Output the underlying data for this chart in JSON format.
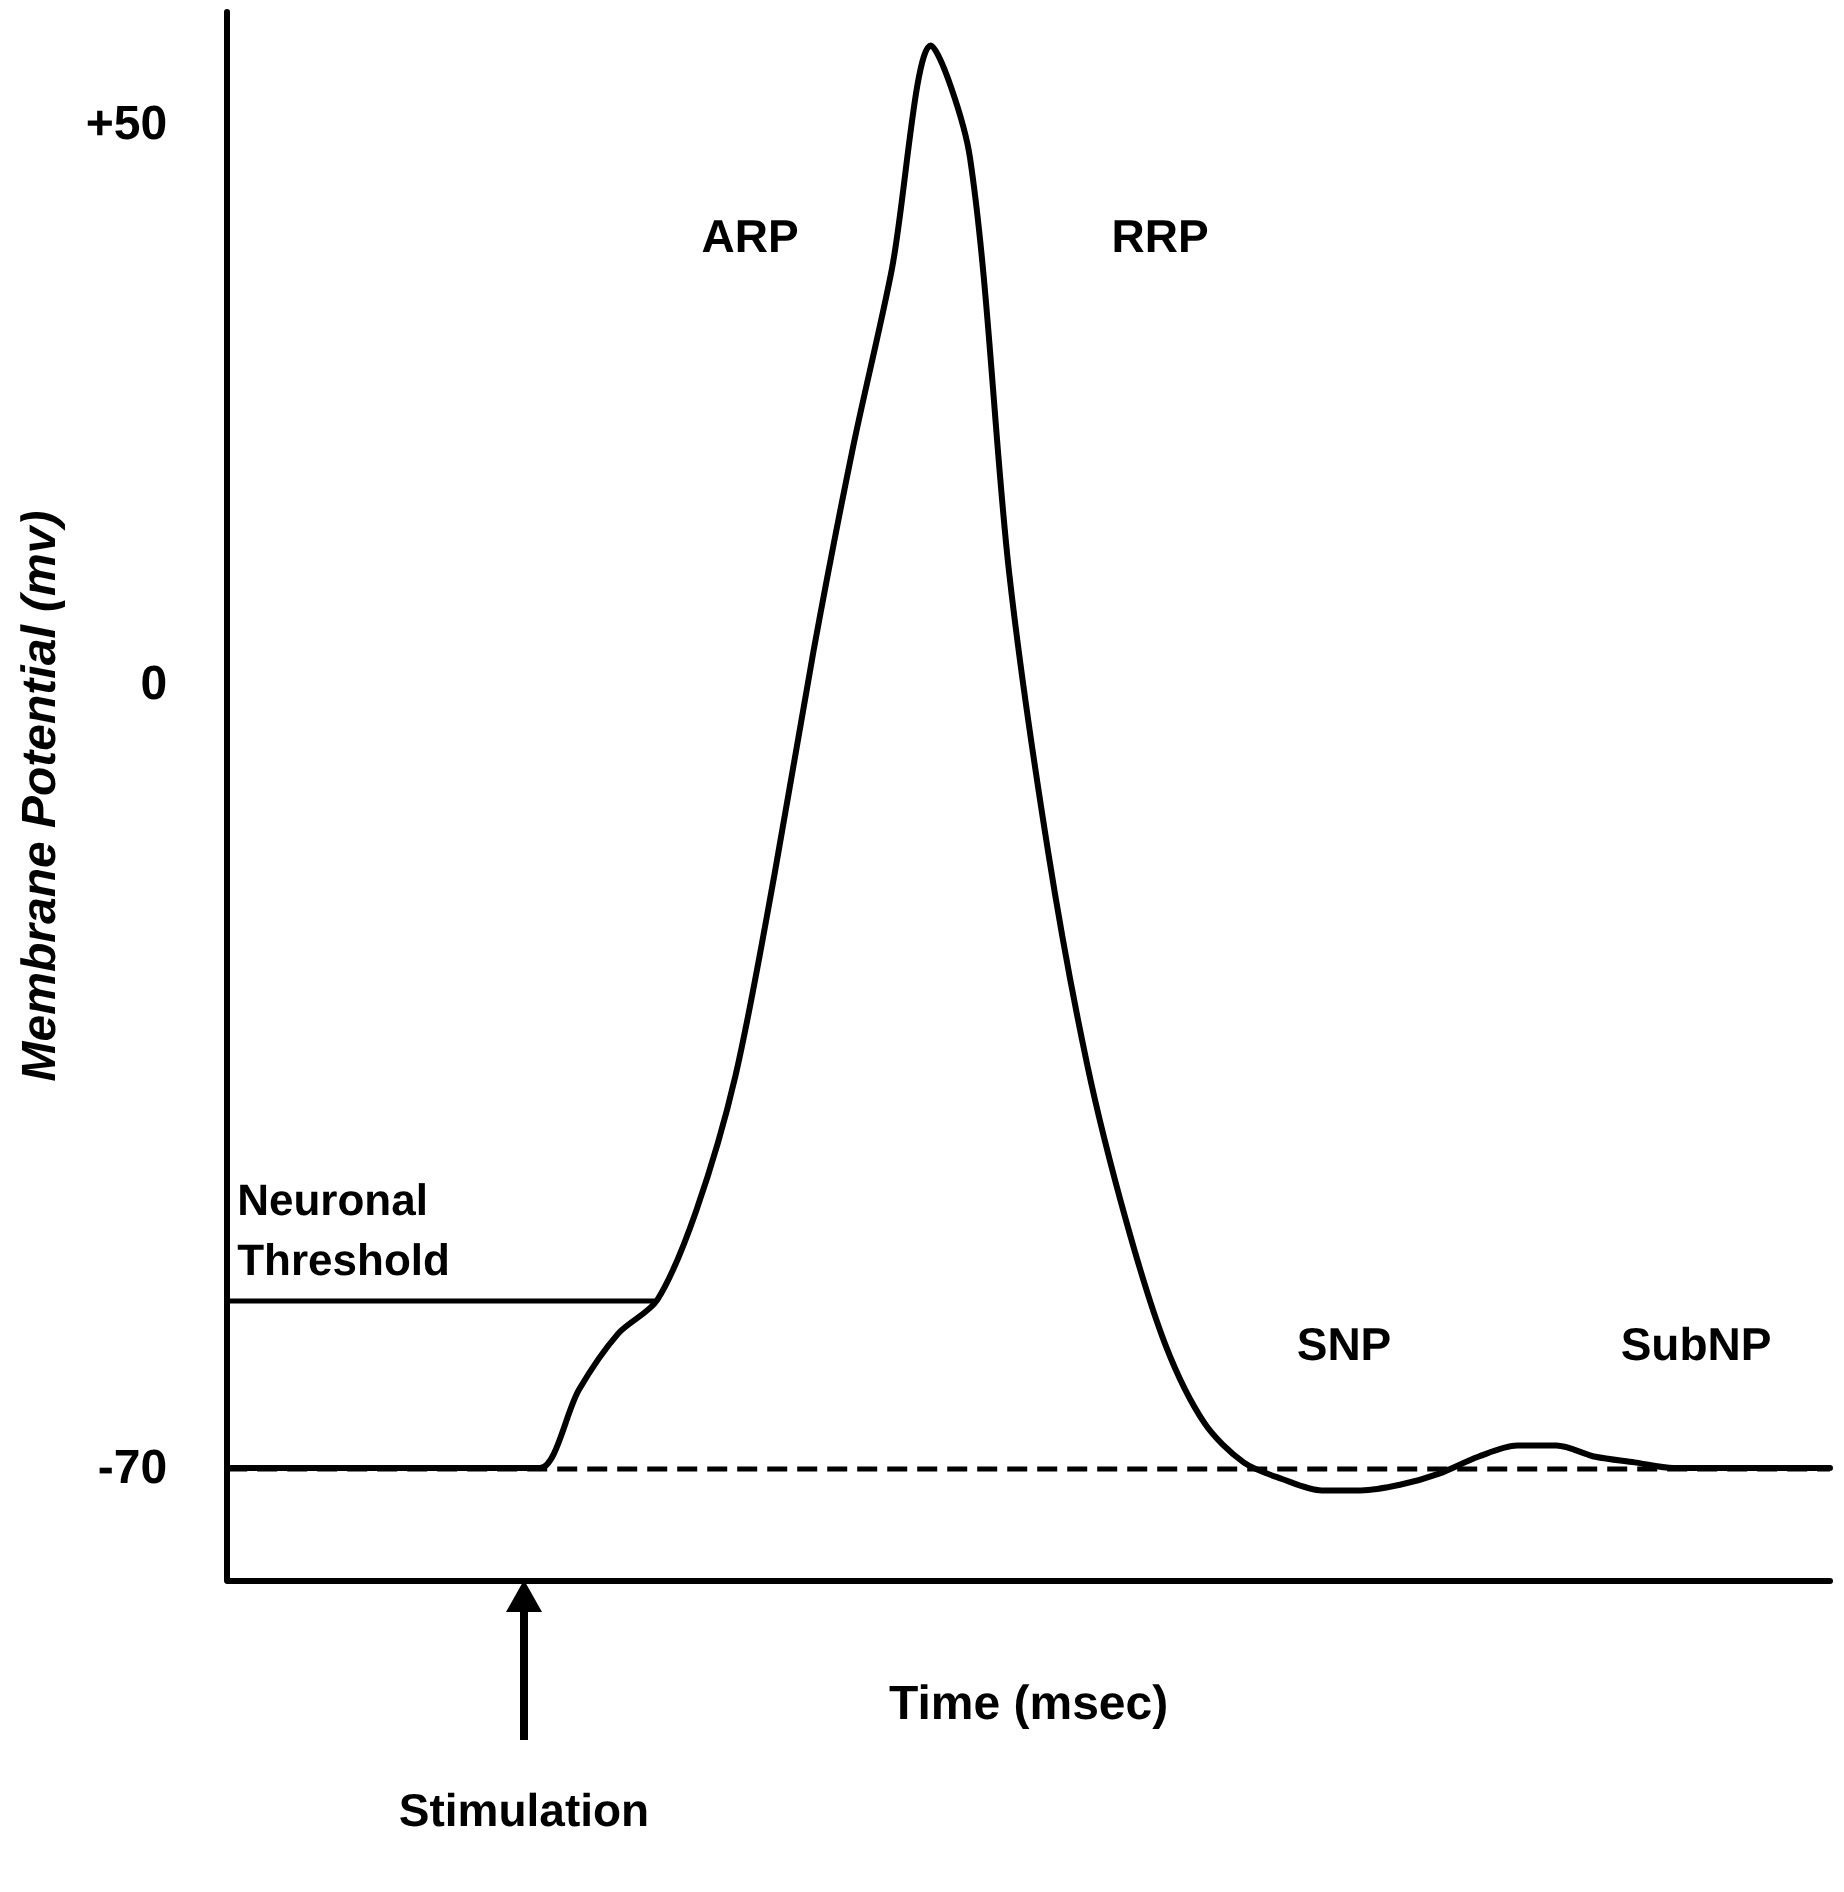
{
  "chart_data": {
    "type": "line",
    "xlabel": "Time (msec)",
    "ylabel": "Membrane Potential (mv)",
    "categories": [
      null,
      null,
      null,
      null,
      null,
      null,
      null,
      null,
      null,
      null,
      null,
      null,
      null,
      null,
      null,
      null,
      null,
      null,
      null,
      null,
      null,
      null,
      null,
      null,
      null,
      null,
      null,
      null,
      null,
      null,
      null,
      null,
      null,
      null,
      null,
      null,
      null,
      null,
      null,
      null,
      null,
      null
    ],
    "series": [
      {
        "color": "#000000",
        "values": [
          -70,
          -70,
          -70,
          -70,
          -70,
          -70,
          -70,
          -70,
          -70,
          -63,
          -58,
          -55,
          -47,
          -35,
          -17,
          3,
          21,
          37,
          57,
          47,
          10,
          -15,
          -34,
          -48,
          -59,
          -66,
          -69.5,
          -71,
          -72,
          -72,
          -71.5,
          -70.5,
          -69,
          -68,
          -68,
          -69,
          -69.5,
          -70,
          -70,
          -70,
          -70,
          -70
        ]
      }
    ],
    "ylim": [
      -80,
      60
    ],
    "yticks": [
      {
        "value": 50,
        "label": "+50"
      },
      0,
      -70
    ],
    "tick_labels": "y",
    "grid": false,
    "marker": "none",
    "line_style": "solid",
    "ref_lines": [
      {
        "axis": "y",
        "value": -70,
        "line_style": "dashed",
        "color": "#000000"
      },
      {
        "axis": "y",
        "value": -55,
        "label": "Neuronal Threshold",
        "line_style": "solid",
        "color": "#000000"
      }
    ],
    "annotations": [
      "ARP",
      "RRP",
      "SNP",
      "SubNP",
      "Stimulation"
    ]
  }
}
